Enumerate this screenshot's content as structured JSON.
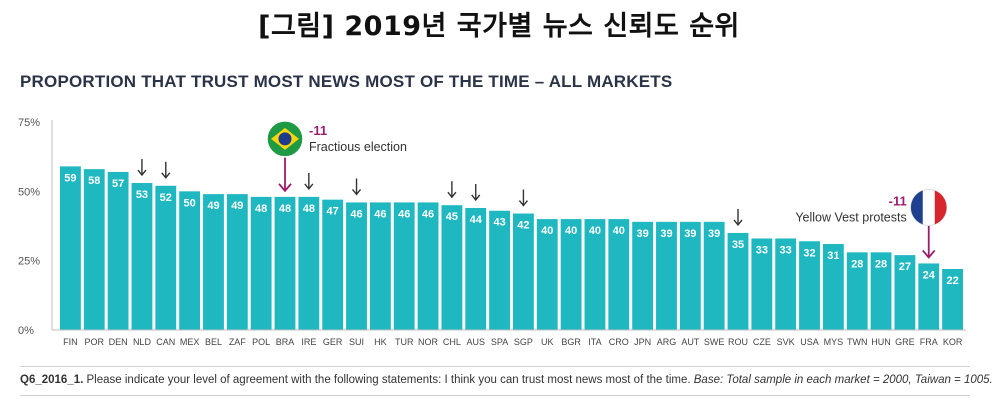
{
  "figure_caption": "[그림] 2019년 국가별 뉴스 신뢰도 순위",
  "footnote": {
    "code": "Q6_2016_1.",
    "question": "Please indicate your level of agreement with the following statements: I think you can trust most news most of the time.",
    "base": "Base: Total sample in each market = 2000, Taiwan = 1005."
  },
  "annotations": [
    {
      "target": "BRA",
      "value": "-11",
      "label": "Fractious election",
      "icon": "brazil-flag-icon"
    },
    {
      "target": "FRA",
      "value": "-11",
      "label": "Yellow Vest protests",
      "icon": "france-flag-icon"
    }
  ],
  "colors": {
    "bar": "#1fb8c1",
    "arrow": "#333333",
    "highlight_arrow": "#9b1d6b",
    "title": "#2b3447"
  },
  "chart_data": {
    "type": "bar",
    "title": "PROPORTION THAT TRUST MOST NEWS MOST OF THE TIME – ALL MARKETS",
    "categories": [
      "FIN",
      "POR",
      "DEN",
      "NLD",
      "CAN",
      "MEX",
      "BEL",
      "ZAF",
      "POL",
      "BRA",
      "IRE",
      "GER",
      "SUI",
      "HK",
      "TUR",
      "NOR",
      "CHL",
      "AUS",
      "SPA",
      "SGP",
      "UK",
      "BGR",
      "ITA",
      "CRO",
      "JPN",
      "ARG",
      "AUT",
      "SWE",
      "ROU",
      "CZE",
      "SVK",
      "USA",
      "MYS",
      "TWN",
      "HUN",
      "GRE",
      "FRA",
      "KOR"
    ],
    "values": [
      59,
      58,
      57,
      53,
      52,
      50,
      49,
      49,
      48,
      48,
      48,
      47,
      46,
      46,
      46,
      46,
      45,
      44,
      43,
      42,
      40,
      40,
      40,
      40,
      39,
      39,
      39,
      39,
      35,
      33,
      33,
      32,
      31,
      28,
      28,
      27,
      24,
      22
    ],
    "data_labels": [
      "59",
      "58",
      "57",
      "53",
      "52",
      "50",
      "49",
      "49",
      "48",
      "48",
      "48",
      "47",
      "46",
      "46",
      "46",
      "46",
      "45",
      "44",
      "43",
      "42",
      "40",
      "40",
      "40",
      "40",
      "39",
      "39",
      "39",
      "39",
      "35",
      "33",
      "33",
      "32",
      "31",
      "28",
      "28",
      "27",
      "24",
      "22"
    ],
    "down_arrows": [
      "NLD",
      "CAN",
      "IRE",
      "SUI",
      "CHL",
      "AUS",
      "SGP",
      "ROU"
    ],
    "highlighted_arrows": [
      "BRA",
      "FRA"
    ],
    "yticks": [
      "0%",
      "25%",
      "50%",
      "75%"
    ],
    "ylim": [
      0,
      75
    ],
    "grid": false,
    "legend": "none"
  }
}
